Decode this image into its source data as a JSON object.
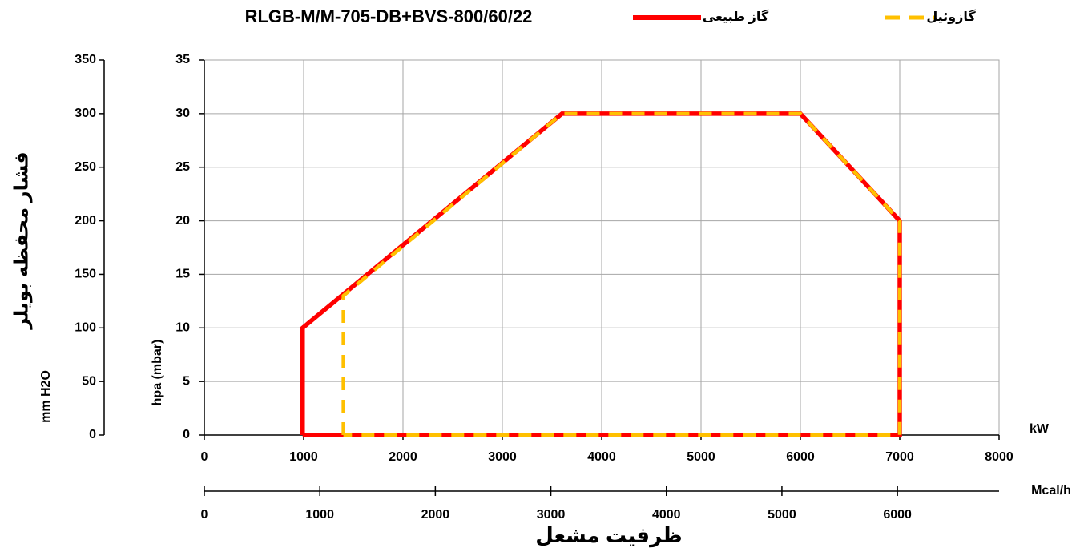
{
  "chart_data": {
    "type": "line",
    "title": "RLGB-M/M-705-DB+BVS-800/60/22",
    "x_unit": "kW",
    "x2_unit": "Mcal/h",
    "x_label": "ظرفیت مشعل",
    "y_label": "فشار محفظه بویلر",
    "y_unit": "hpa (mbar)",
    "y2_unit": "mm H2O",
    "xlim": [
      0,
      8000
    ],
    "xticks": [
      0,
      1000,
      2000,
      3000,
      4000,
      5000,
      6000,
      7000,
      8000
    ],
    "x2lim": [
      0,
      6880
    ],
    "x2ticks": [
      0,
      1000,
      2000,
      3000,
      4000,
      5000,
      6000
    ],
    "ylim": [
      0,
      35
    ],
    "yticks": [
      0,
      5,
      10,
      15,
      20,
      25,
      30,
      35
    ],
    "y2lim": [
      0,
      350
    ],
    "y2ticks": [
      0,
      50,
      100,
      150,
      200,
      250,
      300,
      350
    ],
    "grid": true,
    "series": [
      {
        "name": "گاز طبیعی",
        "color": "#ff0000",
        "dashed": false,
        "x": [
          990,
          990,
          3600,
          6000,
          7000,
          7000,
          990
        ],
        "values": [
          0,
          10,
          30,
          30,
          20,
          0,
          0
        ]
      },
      {
        "name": "گازوئیل",
        "color": "#ffc000",
        "dashed": true,
        "x": [
          1400,
          1400,
          3600,
          6000,
          7000,
          7000,
          1400
        ],
        "values": [
          0,
          13,
          30,
          30,
          20,
          0,
          0
        ]
      }
    ]
  }
}
